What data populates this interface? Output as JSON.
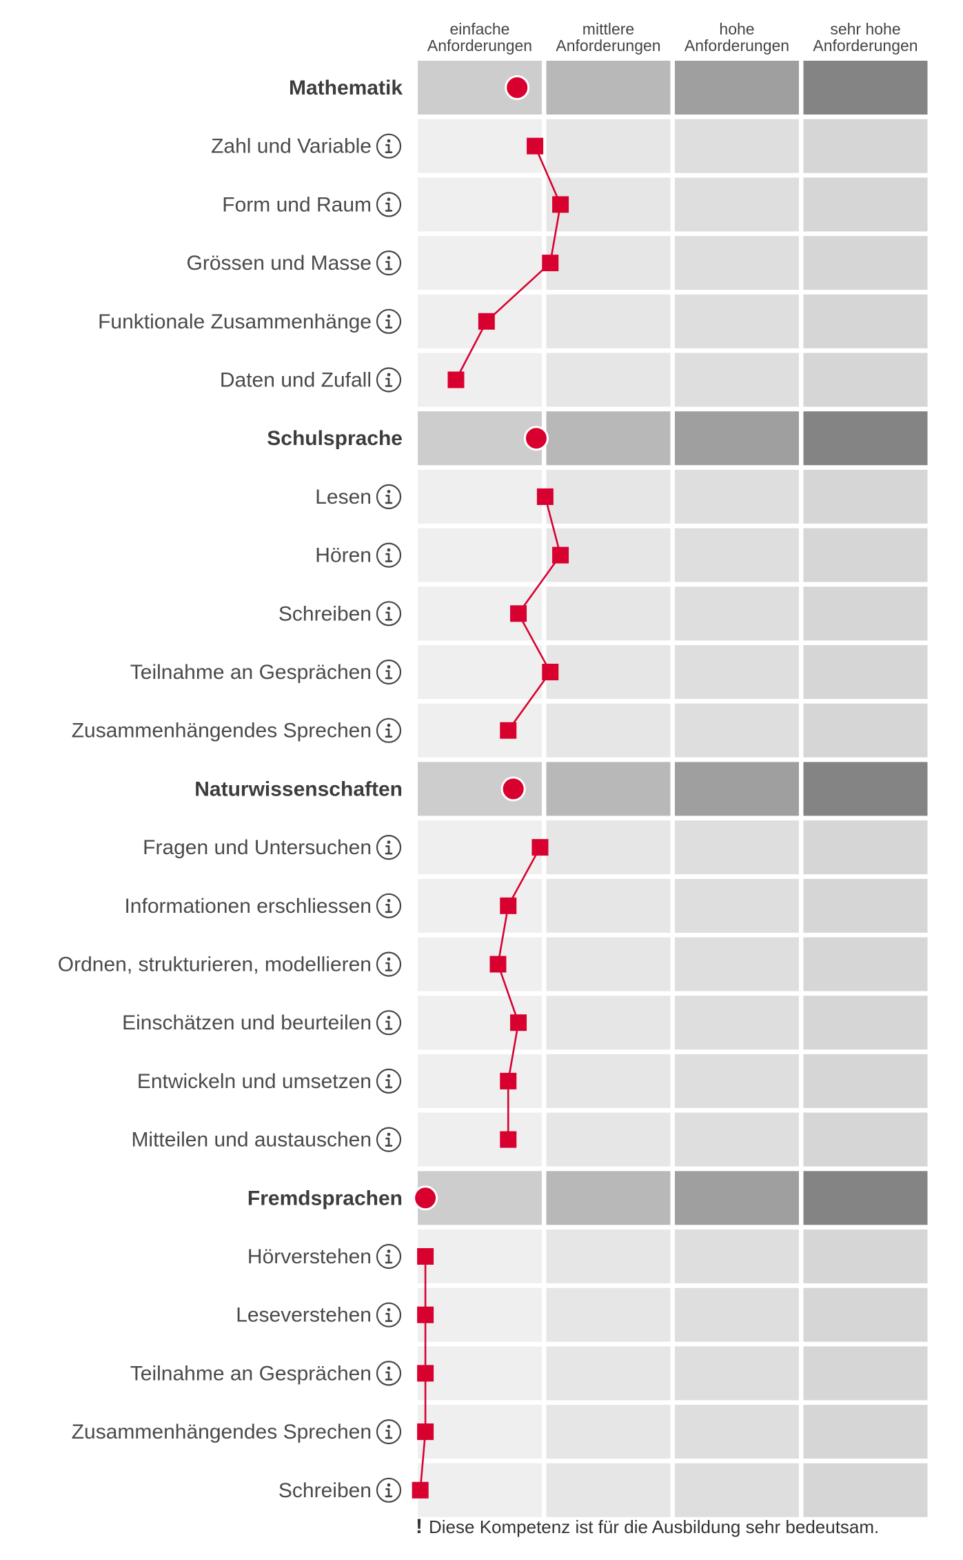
{
  "chart_data": {
    "type": "line",
    "columns": [
      {
        "line1": "einfache",
        "line2": "Anforderungen"
      },
      {
        "line1": "mittlere",
        "line2": "Anforderungen"
      },
      {
        "line1": "hohe",
        "line2": "Anforderungen"
      },
      {
        "line1": "sehr hohe",
        "line2": "Anforderungen"
      }
    ],
    "xlim": [
      0,
      4
    ],
    "groups": [
      {
        "label": "Mathematik",
        "value": 0.78,
        "items": [
          {
            "label": "Zahl und Variable",
            "value": 0.92
          },
          {
            "label": "Form und Raum",
            "value": 1.12
          },
          {
            "label": "Grössen und Masse",
            "value": 1.04
          },
          {
            "label": "Funktionale Zusammenhänge",
            "value": 0.54
          },
          {
            "label": "Daten und Zufall",
            "value": 0.3
          }
        ]
      },
      {
        "label": "Schulsprache",
        "value": 0.93,
        "items": [
          {
            "label": "Lesen",
            "value": 1.0
          },
          {
            "label": "Hören",
            "value": 1.12
          },
          {
            "label": "Schreiben",
            "value": 0.79
          },
          {
            "label": "Teilnahme an Gesprächen",
            "value": 1.04
          },
          {
            "label": "Zusammenhängendes Sprechen",
            "value": 0.71
          }
        ]
      },
      {
        "label": "Naturwissenschaften",
        "value": 0.75,
        "items": [
          {
            "label": "Fragen und Untersuchen",
            "value": 0.96
          },
          {
            "label": "Informationen erschliessen",
            "value": 0.71
          },
          {
            "label": "Ordnen, strukturieren, modellieren",
            "value": 0.63
          },
          {
            "label": "Einschätzen und beurteilen",
            "value": 0.79
          },
          {
            "label": "Entwickeln und umsetzen",
            "value": 0.71
          },
          {
            "label": "Mitteilen und austauschen",
            "value": 0.71
          }
        ]
      },
      {
        "label": "Fremdsprachen",
        "value": 0.06,
        "items": [
          {
            "label": "Hörverstehen",
            "value": 0.06
          },
          {
            "label": "Leseverstehen",
            "value": 0.06
          },
          {
            "label": "Teilnahme an Gesprächen",
            "value": 0.06
          },
          {
            "label": "Zusammenhängendes Sprechen",
            "value": 0.06
          },
          {
            "label": "Schreiben",
            "value": 0.02
          }
        ]
      }
    ],
    "colors": {
      "marker": "#d8002f",
      "group_cells": [
        "#cdcdcd",
        "#b8b8b8",
        "#9f9f9f",
        "#848484"
      ],
      "item_cells": [
        "#efefef",
        "#e6e6e6",
        "#dedede",
        "#d6d6d6"
      ]
    },
    "icons": {
      "info": "info-circle-icon",
      "note": "exclamation-icon"
    },
    "footnote": {
      "mark": "!",
      "text": "Diese Kompetenz ist für die Ausbildung sehr bedeutsam."
    }
  }
}
